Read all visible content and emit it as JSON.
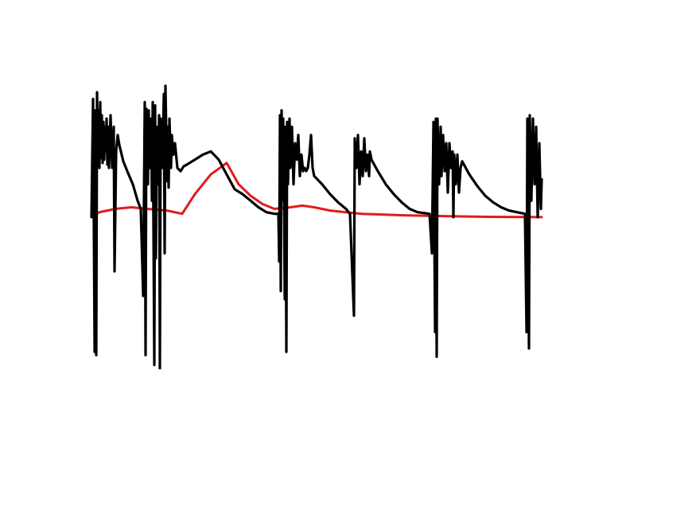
{
  "chart_data": {
    "type": "line",
    "title": "",
    "xlabel": "",
    "ylabel": "",
    "axes_visible": false,
    "grid": false,
    "legend": "none",
    "xlim": [
      0,
      566
    ],
    "ylim": [
      -1.28,
      1.08
    ],
    "series": [
      {
        "color": "#000000",
        "stroke": "black",
        "points": [
          [
            0,
            0
          ],
          [
            2,
            0.72
          ],
          [
            4,
            -0.82
          ],
          [
            5,
            0.65
          ],
          [
            6,
            -0.84
          ],
          [
            7,
            0.76
          ],
          [
            8,
            0.38
          ],
          [
            9,
            0.65
          ],
          [
            10,
            0.3
          ],
          [
            11,
            0.7
          ],
          [
            12,
            0.36
          ],
          [
            13,
            0.62
          ],
          [
            14,
            0.33
          ],
          [
            15,
            0.58
          ],
          [
            16,
            0.35
          ],
          [
            17,
            0.55
          ],
          [
            18,
            0.4
          ],
          [
            19,
            0.6
          ],
          [
            20,
            0.32
          ],
          [
            21,
            0.55
          ],
          [
            22,
            0.3
          ],
          [
            24,
            0.62
          ],
          [
            26,
            0.3
          ],
          [
            28,
            0.55
          ],
          [
            29,
            -0.33
          ],
          [
            31,
            0.4
          ],
          [
            33,
            0.5
          ],
          [
            35,
            0.44
          ],
          [
            40,
            0.34
          ],
          [
            45,
            0.28
          ],
          [
            52,
            0.2
          ],
          [
            58,
            0.1
          ],
          [
            62,
            0.05
          ],
          [
            65,
            -0.48
          ],
          [
            67,
            0.7
          ],
          [
            68,
            -0.84
          ],
          [
            69,
            0.66
          ],
          [
            71,
            0.2
          ],
          [
            72,
            0.65
          ],
          [
            73,
            0.3
          ],
          [
            75,
            0.6
          ],
          [
            76,
            0.1
          ],
          [
            77,
            0.7
          ],
          [
            79,
            -0.9
          ],
          [
            80,
            0.68
          ],
          [
            81,
            -0.25
          ],
          [
            82,
            0.55
          ],
          [
            84,
            0.2
          ],
          [
            85,
            0.62
          ],
          [
            86,
            -0.92
          ],
          [
            87,
            0.6
          ],
          [
            89,
            0.3
          ],
          [
            91,
            0.75
          ],
          [
            92,
            -0.22
          ],
          [
            93,
            0.8
          ],
          [
            95,
            0.22
          ],
          [
            96,
            0.55
          ],
          [
            97,
            0.18
          ],
          [
            98,
            0.6
          ],
          [
            100,
            0.3
          ],
          [
            101,
            0.5
          ],
          [
            103,
            0.38
          ],
          [
            105,
            0.45
          ],
          [
            108,
            0.3
          ],
          [
            112,
            0.28
          ],
          [
            116,
            0.31
          ],
          [
            120,
            0.32
          ],
          [
            130,
            0.35
          ],
          [
            140,
            0.38
          ],
          [
            150,
            0.4
          ],
          [
            160,
            0.35
          ],
          [
            170,
            0.26
          ],
          [
            180,
            0.17
          ],
          [
            190,
            0.14
          ],
          [
            200,
            0.1
          ],
          [
            210,
            0.06
          ],
          [
            220,
            0.03
          ],
          [
            230,
            0.02
          ],
          [
            235,
            0.02
          ],
          [
            236,
            -0.27
          ],
          [
            237,
            0.62
          ],
          [
            238,
            -0.45
          ],
          [
            239,
            0.65
          ],
          [
            240,
            0.1
          ],
          [
            241,
            0.6
          ],
          [
            242,
            0.18
          ],
          [
            243,
            -0.5
          ],
          [
            244,
            0.55
          ],
          [
            245,
            -0.82
          ],
          [
            246,
            0.58
          ],
          [
            247,
            0.2
          ],
          [
            249,
            0.6
          ],
          [
            250,
            0.3
          ],
          [
            252,
            0.55
          ],
          [
            254,
            0.2
          ],
          [
            256,
            0.45
          ],
          [
            258,
            0.35
          ],
          [
            260,
            0.5
          ],
          [
            262,
            0.25
          ],
          [
            264,
            0.38
          ],
          [
            266,
            0.28
          ],
          [
            268,
            0.3
          ],
          [
            270,
            0.28
          ],
          [
            272,
            0.3
          ],
          [
            274,
            0.38
          ],
          [
            276,
            0.5
          ],
          [
            278,
            0.3
          ],
          [
            280,
            0.25
          ],
          [
            290,
            0.2
          ],
          [
            300,
            0.14
          ],
          [
            310,
            0.09
          ],
          [
            320,
            0.05
          ],
          [
            325,
            0.02
          ],
          [
            330,
            -0.6
          ],
          [
            331,
            0.48
          ],
          [
            333,
            0.3
          ],
          [
            335,
            0.5
          ],
          [
            337,
            0.2
          ],
          [
            339,
            0.4
          ],
          [
            341,
            0.25
          ],
          [
            343,
            0.48
          ],
          [
            345,
            0.28
          ],
          [
            347,
            0.38
          ],
          [
            349,
            0.25
          ],
          [
            350,
            0.4
          ],
          [
            352,
            0.35
          ],
          [
            360,
            0.28
          ],
          [
            370,
            0.2
          ],
          [
            380,
            0.14
          ],
          [
            390,
            0.09
          ],
          [
            400,
            0.05
          ],
          [
            410,
            0.03
          ],
          [
            425,
            0.02
          ],
          [
            428,
            -0.22
          ],
          [
            430,
            0.58
          ],
          [
            432,
            -0.7
          ],
          [
            433,
            0.6
          ],
          [
            434,
            -0.85
          ],
          [
            435,
            0.6
          ],
          [
            437,
            0.2
          ],
          [
            439,
            0.55
          ],
          [
            440,
            0.25
          ],
          [
            442,
            0.5
          ],
          [
            444,
            0.28
          ],
          [
            446,
            0.45
          ],
          [
            448,
            0.15
          ],
          [
            450,
            0.45
          ],
          [
            452,
            0.3
          ],
          [
            454,
            0.4
          ],
          [
            455,
            0.0
          ],
          [
            456,
            0.38
          ],
          [
            458,
            0.2
          ],
          [
            460,
            0.38
          ],
          [
            462,
            0.15
          ],
          [
            464,
            0.3
          ],
          [
            466,
            0.34
          ],
          [
            475,
            0.26
          ],
          [
            485,
            0.19
          ],
          [
            495,
            0.13
          ],
          [
            505,
            0.09
          ],
          [
            515,
            0.06
          ],
          [
            525,
            0.04
          ],
          [
            535,
            0.03
          ],
          [
            545,
            0.02
          ],
          [
            547,
            -0.7
          ],
          [
            548,
            0.6
          ],
          [
            550,
            -0.8
          ],
          [
            551,
            0.62
          ],
          [
            553,
            0.1
          ],
          [
            555,
            0.6
          ],
          [
            557,
            0.2
          ],
          [
            559,
            0.55
          ],
          [
            561,
            0.0
          ],
          [
            563,
            0.45
          ],
          [
            565,
            0.05
          ],
          [
            566,
            0.23
          ]
        ]
      },
      {
        "color": "#e31a1c",
        "stroke": "red",
        "points": [
          [
            0,
            0
          ],
          [
            10,
            0.03
          ],
          [
            30,
            0.05
          ],
          [
            50,
            0.06
          ],
          [
            70,
            0.05
          ],
          [
            95,
            0.04
          ],
          [
            114,
            0.02
          ],
          [
            130,
            0.14
          ],
          [
            150,
            0.26
          ],
          [
            170,
            0.33
          ],
          [
            185,
            0.2
          ],
          [
            200,
            0.13
          ],
          [
            215,
            0.08
          ],
          [
            230,
            0.05
          ],
          [
            250,
            0.06
          ],
          [
            265,
            0.07
          ],
          [
            280,
            0.06
          ],
          [
            300,
            0.04
          ],
          [
            320,
            0.03
          ],
          [
            340,
            0.02
          ],
          [
            370,
            0.015
          ],
          [
            400,
            0.01
          ],
          [
            450,
            0.005
          ],
          [
            500,
            0.002
          ],
          [
            566,
            0.0
          ]
        ]
      }
    ]
  }
}
